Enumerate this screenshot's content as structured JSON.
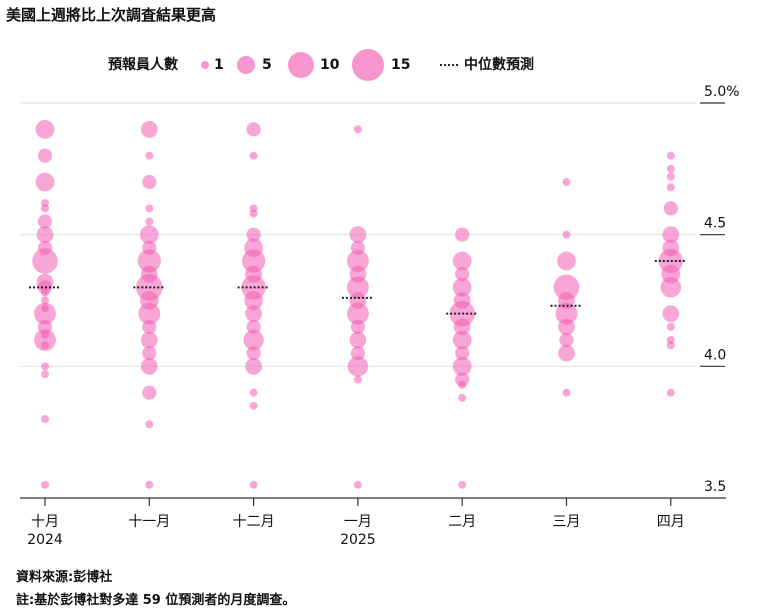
{
  "title": "美國上週將比上次調査結果更高",
  "legend": {
    "count_label": "預報員人數",
    "sizes": [
      {
        "label": "1",
        "value": 1
      },
      {
        "label": "5",
        "value": 5
      },
      {
        "label": "10",
        "value": 10
      },
      {
        "label": "15",
        "value": 15
      }
    ],
    "median_label": "中位數預測"
  },
  "footer": {
    "source": "資料來源:彭博社",
    "note": "註:基於彭博社對多達 59 位預測者的月度調查。"
  },
  "colors": {
    "bubble": "#f25cb4",
    "bubble_strong": "#ee1f9a",
    "median": "#222222",
    "grid": "#e5e5e5",
    "axis": "#333333"
  },
  "chart_data": {
    "type": "scatter",
    "title": "美國上週將比上次調査結果更高",
    "y_axis": {
      "ticks": [
        "5.0%",
        "4.5",
        "4.0",
        "3.5"
      ],
      "tick_values": [
        5.0,
        4.5,
        4.0,
        3.5
      ],
      "ylim": [
        3.5,
        5.0
      ],
      "side": "right"
    },
    "grid": true,
    "categories": [
      {
        "label": "十月",
        "sub": "2024"
      },
      {
        "label": "十一月",
        "sub": ""
      },
      {
        "label": "十二月",
        "sub": ""
      },
      {
        "label": "一月",
        "sub": "2025"
      },
      {
        "label": "二月",
        "sub": ""
      },
      {
        "label": "三月",
        "sub": ""
      },
      {
        "label": "四月",
        "sub": ""
      }
    ],
    "median": [
      4.3,
      4.3,
      4.3,
      4.26,
      4.2,
      4.23,
      4.4
    ],
    "points": [
      [
        [
          4.9,
          4
        ],
        [
          4.8,
          2
        ],
        [
          4.7,
          4
        ],
        [
          4.62,
          1
        ],
        [
          4.6,
          1
        ],
        [
          4.55,
          2
        ],
        [
          4.5,
          3
        ],
        [
          4.45,
          2
        ],
        [
          4.4,
          9
        ],
        [
          4.32,
          3
        ],
        [
          4.3,
          2
        ],
        [
          4.28,
          1
        ],
        [
          4.25,
          1
        ],
        [
          4.22,
          1
        ],
        [
          4.2,
          6
        ],
        [
          4.15,
          2
        ],
        [
          4.12,
          1
        ],
        [
          4.1,
          6
        ],
        [
          4.08,
          1
        ],
        [
          4.0,
          1
        ],
        [
          3.97,
          1
        ],
        [
          3.8,
          1
        ],
        [
          3.55,
          1
        ]
      ],
      [
        [
          4.9,
          3
        ],
        [
          4.8,
          1
        ],
        [
          4.7,
          2
        ],
        [
          4.6,
          1
        ],
        [
          4.55,
          1
        ],
        [
          4.5,
          4
        ],
        [
          4.45,
          2
        ],
        [
          4.4,
          7
        ],
        [
          4.35,
          3
        ],
        [
          4.3,
          10
        ],
        [
          4.25,
          4
        ],
        [
          4.2,
          6
        ],
        [
          4.15,
          2
        ],
        [
          4.1,
          3
        ],
        [
          4.05,
          2
        ],
        [
          4.0,
          3
        ],
        [
          3.9,
          2
        ],
        [
          3.78,
          1
        ],
        [
          3.55,
          1
        ]
      ],
      [
        [
          4.9,
          2
        ],
        [
          4.8,
          1
        ],
        [
          4.6,
          1
        ],
        [
          4.58,
          1
        ],
        [
          4.5,
          2
        ],
        [
          4.45,
          4
        ],
        [
          4.4,
          7
        ],
        [
          4.35,
          3
        ],
        [
          4.3,
          8
        ],
        [
          4.25,
          4
        ],
        [
          4.2,
          3
        ],
        [
          4.15,
          2
        ],
        [
          4.1,
          5
        ],
        [
          4.05,
          2
        ],
        [
          4.0,
          3
        ],
        [
          3.9,
          1
        ],
        [
          3.85,
          1
        ],
        [
          3.55,
          1
        ]
      ],
      [
        [
          4.9,
          1
        ],
        [
          4.5,
          3
        ],
        [
          4.45,
          2
        ],
        [
          4.4,
          6
        ],
        [
          4.35,
          3
        ],
        [
          4.3,
          6
        ],
        [
          4.25,
          3
        ],
        [
          4.2,
          6
        ],
        [
          4.15,
          2
        ],
        [
          4.1,
          3
        ],
        [
          4.05,
          2
        ],
        [
          4.0,
          5
        ],
        [
          3.95,
          1
        ],
        [
          3.55,
          1
        ]
      ],
      [
        [
          4.5,
          2
        ],
        [
          4.4,
          4
        ],
        [
          4.35,
          2
        ],
        [
          4.3,
          4
        ],
        [
          4.25,
          3
        ],
        [
          4.2,
          9
        ],
        [
          4.15,
          3
        ],
        [
          4.1,
          4
        ],
        [
          4.05,
          2
        ],
        [
          4.0,
          4
        ],
        [
          3.95,
          2
        ],
        [
          3.93,
          1
        ],
        [
          3.88,
          1
        ],
        [
          3.55,
          1
        ]
      ],
      [
        [
          4.7,
          1
        ],
        [
          4.5,
          1
        ],
        [
          4.4,
          4
        ],
        [
          4.3,
          9
        ],
        [
          4.25,
          3
        ],
        [
          4.2,
          6
        ],
        [
          4.15,
          3
        ],
        [
          4.1,
          2
        ],
        [
          4.05,
          3
        ],
        [
          3.9,
          1
        ]
      ],
      [
        [
          4.8,
          1
        ],
        [
          4.75,
          1
        ],
        [
          4.72,
          1
        ],
        [
          4.68,
          1
        ],
        [
          4.6,
          2
        ],
        [
          4.5,
          3
        ],
        [
          4.45,
          3
        ],
        [
          4.4,
          8
        ],
        [
          4.35,
          4
        ],
        [
          4.3,
          5
        ],
        [
          4.2,
          3
        ],
        [
          4.15,
          1
        ],
        [
          4.1,
          1
        ],
        [
          4.08,
          1
        ],
        [
          3.9,
          1
        ]
      ]
    ]
  }
}
